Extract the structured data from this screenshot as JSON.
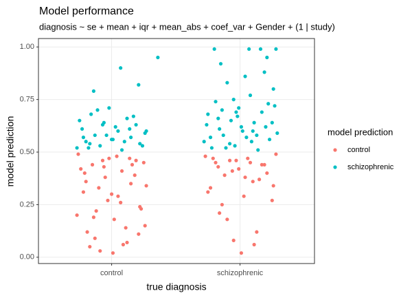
{
  "chart_data": {
    "type": "scatter",
    "title": "Model performance",
    "subtitle": "diagnosis ~ se + mean + iqr + mean_abs + coef_var + Gender + (1 | study)",
    "x_label": "true diagnosis",
    "y_label": "model prediction",
    "legend_title": "model prediction",
    "legend": "right",
    "grid": true,
    "xlim": [
      0.43,
      2.58
    ],
    "ylim": [
      -0.03,
      1.04
    ],
    "xticks": [
      {
        "value": 1,
        "label": "control"
      },
      {
        "value": 2,
        "label": "schizophrenic"
      }
    ],
    "yticks": [
      {
        "value": 0,
        "label": "0.00"
      },
      {
        "value": 0.25,
        "label": "0.25"
      },
      {
        "value": 0.5,
        "label": "0.50"
      },
      {
        "value": 0.75,
        "label": "0.75"
      },
      {
        "value": 1,
        "label": "1.00"
      }
    ],
    "series": [
      {
        "name": "control",
        "color": "#F8766D",
        "x": [
          0.74,
          0.78,
          0.81,
          0.85,
          0.88,
          0.91,
          0.95,
          0.98,
          1.02,
          1.05,
          1.08,
          1.12,
          1.15,
          1.19,
          1.22,
          1.26,
          0.76,
          0.83,
          0.9,
          0.97,
          1.04,
          1.11,
          1.18,
          1.25,
          0.73,
          0.8,
          0.87,
          0.94,
          1.01,
          1.07,
          1.14,
          1.21,
          1.27,
          0.79,
          0.86,
          0.93,
          1.0,
          1.09,
          1.16,
          1.23,
          1.73,
          1.77,
          1.81,
          1.84,
          1.88,
          1.92,
          1.95,
          1.99,
          2.03,
          2.06,
          2.1,
          2.13,
          2.17,
          2.21,
          2.25,
          2.28,
          1.75,
          1.83,
          1.9,
          1.97,
          2.04,
          2.11,
          2.19,
          2.26,
          1.79,
          1.86,
          1.94,
          2.01,
          2.08,
          2.15
        ],
        "values": [
          0.49,
          0.31,
          0.12,
          0.44,
          0.22,
          0.03,
          0.38,
          0.47,
          0.18,
          0.29,
          0.41,
          0.07,
          0.35,
          0.46,
          0.24,
          0.15,
          0.42,
          0.05,
          0.33,
          0.27,
          0.48,
          0.14,
          0.39,
          0.45,
          0.2,
          0.36,
          0.09,
          0.43,
          0.02,
          0.26,
          0.47,
          0.11,
          0.34,
          0.4,
          0.19,
          0.46,
          0.3,
          0.06,
          0.44,
          0.23,
          0.48,
          0.33,
          0.45,
          0.21,
          0.39,
          0.46,
          0.08,
          0.42,
          0.29,
          0.47,
          0.36,
          0.12,
          0.44,
          0.4,
          0.27,
          0.49,
          0.31,
          0.43,
          0.18,
          0.46,
          0.38,
          0.06,
          0.44,
          0.34,
          0.47,
          0.25,
          0.41,
          0.02,
          0.45,
          0.37
        ]
      },
      {
        "name": "schizophrenic",
        "color": "#00BFC4",
        "x": [
          0.73,
          0.77,
          0.8,
          0.84,
          0.87,
          0.91,
          0.94,
          0.98,
          1.01,
          1.05,
          1.08,
          1.12,
          1.15,
          1.19,
          1.22,
          1.26,
          0.75,
          0.82,
          0.89,
          0.96,
          1.03,
          1.1,
          1.17,
          1.24,
          0.78,
          0.86,
          0.93,
          1.0,
          1.07,
          1.14,
          1.21,
          0.83,
          1.36,
          1.27,
          1.72,
          1.75,
          1.78,
          1.81,
          1.84,
          1.87,
          1.9,
          1.93,
          1.96,
          1.99,
          2.02,
          2.05,
          2.08,
          2.11,
          2.14,
          2.17,
          2.2,
          2.23,
          2.26,
          2.29,
          1.74,
          1.8,
          1.86,
          1.92,
          1.98,
          2.04,
          2.1,
          2.16,
          2.22,
          2.28,
          1.77,
          1.83,
          1.89,
          1.95,
          2.01,
          2.07,
          2.13,
          2.19,
          2.25,
          1.85,
          1.97,
          2.09,
          2.21,
          2.27
        ],
        "values": [
          0.52,
          0.61,
          0.55,
          0.68,
          0.58,
          0.53,
          0.64,
          0.71,
          0.56,
          0.6,
          0.51,
          0.66,
          0.57,
          0.63,
          0.54,
          0.59,
          0.65,
          0.52,
          0.7,
          0.58,
          0.62,
          0.55,
          0.67,
          0.53,
          0.57,
          0.79,
          0.63,
          0.56,
          0.9,
          0.61,
          0.82,
          0.54,
          0.95,
          0.6,
          0.55,
          0.68,
          0.52,
          0.74,
          0.61,
          0.58,
          0.83,
          0.65,
          0.53,
          0.71,
          0.6,
          0.57,
          0.77,
          0.64,
          0.51,
          0.69,
          0.62,
          0.56,
          0.8,
          0.59,
          0.63,
          0.99,
          0.7,
          0.54,
          0.67,
          0.86,
          0.6,
          0.99,
          0.73,
          0.99,
          0.57,
          0.66,
          0.52,
          0.75,
          0.62,
          0.99,
          0.58,
          0.88,
          0.64,
          0.92,
          0.69,
          0.55,
          0.95,
          0.72
        ]
      }
    ]
  }
}
